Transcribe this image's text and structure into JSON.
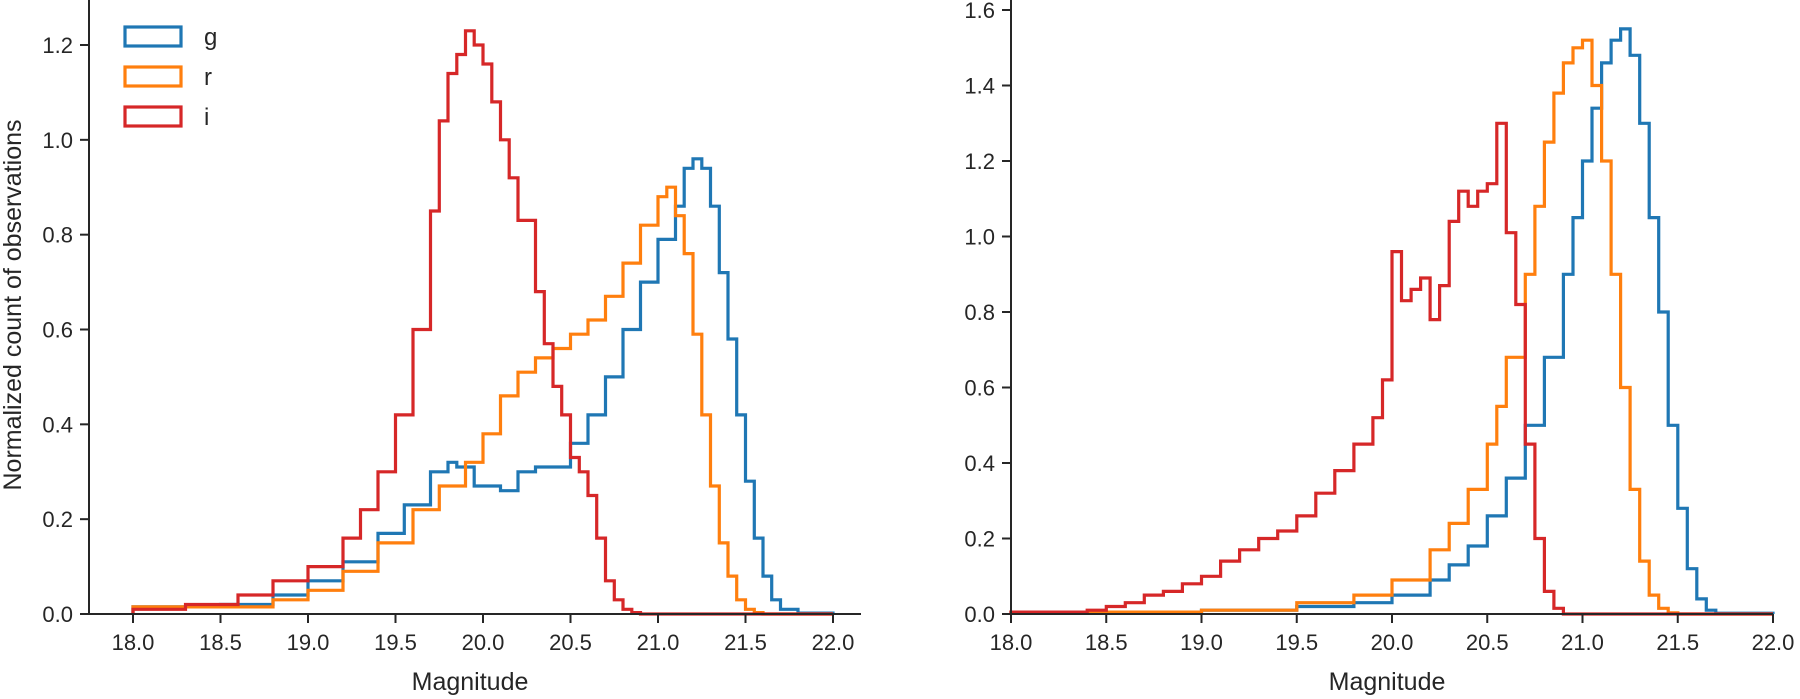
{
  "colors": {
    "g": "#1f77b4",
    "r": "#ff7f0e",
    "i": "#d62728"
  },
  "chart_data": [
    {
      "type": "line",
      "step": true,
      "xlabel": "Magnitude",
      "ylabel": "Normalized count of observations",
      "xlim": [
        17.85,
        22.2
      ],
      "ylim": [
        0,
        1.3
      ],
      "xticks": [
        "18.0",
        "18.5",
        "19.0",
        "19.5",
        "20.0",
        "20.5",
        "21.0",
        "21.5",
        "22.0"
      ],
      "yticks": [
        "0.0",
        "0.2",
        "0.4",
        "0.6",
        "0.8",
        "1.0",
        "1.2"
      ],
      "legend": {
        "position": "top-left",
        "entries": [
          "g",
          "r",
          "i"
        ]
      },
      "grid": false,
      "series": [
        {
          "name": "g",
          "color": "#1f77b4",
          "x": [
            18.0,
            18.5,
            18.8,
            19.0,
            19.2,
            19.4,
            19.55,
            19.7,
            19.8,
            19.85,
            19.95,
            20.1,
            20.2,
            20.3,
            20.4,
            20.5,
            20.6,
            20.7,
            20.8,
            20.9,
            21.0,
            21.1,
            21.15,
            21.2,
            21.25,
            21.3,
            21.35,
            21.4,
            21.45,
            21.5,
            21.55,
            21.6,
            21.65,
            21.7,
            21.8,
            22.0
          ],
          "y": [
            0.015,
            0.02,
            0.04,
            0.07,
            0.11,
            0.17,
            0.23,
            0.3,
            0.32,
            0.31,
            0.27,
            0.26,
            0.3,
            0.31,
            0.31,
            0.36,
            0.42,
            0.5,
            0.6,
            0.7,
            0.79,
            0.86,
            0.94,
            0.96,
            0.94,
            0.86,
            0.72,
            0.58,
            0.42,
            0.28,
            0.16,
            0.08,
            0.03,
            0.01,
            0.002,
            0.0
          ]
        },
        {
          "name": "r",
          "color": "#ff7f0e",
          "x": [
            18.0,
            18.5,
            18.8,
            19.0,
            19.2,
            19.4,
            19.6,
            19.75,
            19.9,
            20.0,
            20.1,
            20.2,
            20.3,
            20.4,
            20.5,
            20.6,
            20.7,
            20.8,
            20.9,
            21.0,
            21.05,
            21.1,
            21.15,
            21.2,
            21.25,
            21.3,
            21.35,
            21.4,
            21.45,
            21.5,
            21.55,
            21.6,
            21.7,
            22.0
          ],
          "y": [
            0.015,
            0.015,
            0.03,
            0.05,
            0.09,
            0.15,
            0.22,
            0.27,
            0.32,
            0.38,
            0.46,
            0.51,
            0.54,
            0.56,
            0.59,
            0.62,
            0.67,
            0.74,
            0.82,
            0.88,
            0.9,
            0.84,
            0.76,
            0.59,
            0.42,
            0.27,
            0.15,
            0.08,
            0.03,
            0.01,
            0.003,
            0.0,
            0.0,
            0.0
          ]
        },
        {
          "name": "i",
          "color": "#d62728",
          "x": [
            18.0,
            18.3,
            18.6,
            18.8,
            19.0,
            19.2,
            19.3,
            19.4,
            19.5,
            19.6,
            19.7,
            19.75,
            19.8,
            19.85,
            19.9,
            19.95,
            20.0,
            20.05,
            20.1,
            20.15,
            20.2,
            20.3,
            20.35,
            20.4,
            20.45,
            20.5,
            20.55,
            20.6,
            20.65,
            20.7,
            20.75,
            20.8,
            20.85,
            20.9,
            21.0,
            22.0
          ],
          "y": [
            0.01,
            0.02,
            0.04,
            0.07,
            0.1,
            0.16,
            0.22,
            0.3,
            0.42,
            0.6,
            0.85,
            1.04,
            1.14,
            1.18,
            1.23,
            1.2,
            1.16,
            1.08,
            1.0,
            0.92,
            0.83,
            0.68,
            0.57,
            0.48,
            0.42,
            0.33,
            0.3,
            0.25,
            0.16,
            0.07,
            0.03,
            0.01,
            0.003,
            0.0,
            0.0,
            0.0
          ]
        }
      ]
    },
    {
      "type": "line",
      "step": true,
      "xlabel": "Magnitude",
      "ylabel": "",
      "xlim": [
        18.0,
        22.0
      ],
      "ylim": [
        0,
        1.63
      ],
      "xticks": [
        "18.0",
        "18.5",
        "19.0",
        "19.5",
        "20.0",
        "20.5",
        "21.0",
        "21.5",
        "22.0"
      ],
      "yticks": [
        "0.0",
        "0.2",
        "0.4",
        "0.6",
        "0.8",
        "1.0",
        "1.2",
        "1.4",
        "1.6"
      ],
      "grid": false,
      "series": [
        {
          "name": "g",
          "color": "#1f77b4",
          "x": [
            18.0,
            19.0,
            19.5,
            19.8,
            20.0,
            20.2,
            20.3,
            20.4,
            20.5,
            20.6,
            20.7,
            20.8,
            20.9,
            20.95,
            21.0,
            21.05,
            21.1,
            21.15,
            21.2,
            21.25,
            21.3,
            21.35,
            21.4,
            21.45,
            21.5,
            21.55,
            21.6,
            21.65,
            21.7,
            22.0
          ],
          "y": [
            0.005,
            0.01,
            0.02,
            0.03,
            0.05,
            0.09,
            0.13,
            0.18,
            0.26,
            0.36,
            0.5,
            0.68,
            0.9,
            1.05,
            1.2,
            1.34,
            1.46,
            1.52,
            1.55,
            1.48,
            1.3,
            1.05,
            0.8,
            0.5,
            0.28,
            0.12,
            0.04,
            0.01,
            0.002,
            0.0
          ]
        },
        {
          "name": "r",
          "color": "#ff7f0e",
          "x": [
            18.0,
            19.0,
            19.5,
            19.8,
            20.0,
            20.2,
            20.3,
            20.4,
            20.5,
            20.55,
            20.6,
            20.7,
            20.75,
            20.8,
            20.85,
            20.9,
            20.95,
            21.0,
            21.05,
            21.1,
            21.15,
            21.2,
            21.25,
            21.3,
            21.35,
            21.4,
            21.45,
            21.5,
            22.0
          ],
          "y": [
            0.005,
            0.01,
            0.03,
            0.05,
            0.09,
            0.17,
            0.24,
            0.33,
            0.45,
            0.55,
            0.68,
            0.9,
            1.08,
            1.25,
            1.38,
            1.46,
            1.5,
            1.52,
            1.4,
            1.2,
            0.9,
            0.6,
            0.33,
            0.14,
            0.05,
            0.015,
            0.003,
            0.0,
            0.0
          ]
        },
        {
          "name": "i",
          "color": "#d62728",
          "x": [
            18.0,
            18.4,
            18.5,
            18.6,
            18.7,
            18.8,
            18.9,
            19.0,
            19.1,
            19.2,
            19.3,
            19.4,
            19.5,
            19.6,
            19.7,
            19.8,
            19.9,
            19.95,
            20.0,
            20.05,
            20.1,
            20.15,
            20.2,
            20.25,
            20.3,
            20.35,
            20.4,
            20.45,
            20.5,
            20.55,
            20.6,
            20.65,
            20.7,
            20.75,
            20.8,
            20.85,
            20.9,
            22.0
          ],
          "y": [
            0.005,
            0.01,
            0.02,
            0.03,
            0.05,
            0.06,
            0.08,
            0.1,
            0.14,
            0.17,
            0.2,
            0.22,
            0.26,
            0.32,
            0.38,
            0.45,
            0.52,
            0.62,
            0.96,
            0.83,
            0.86,
            0.89,
            0.78,
            0.87,
            1.04,
            1.12,
            1.08,
            1.12,
            1.14,
            1.3,
            1.01,
            0.82,
            0.45,
            0.2,
            0.06,
            0.015,
            0.0,
            0.0
          ]
        }
      ]
    }
  ]
}
